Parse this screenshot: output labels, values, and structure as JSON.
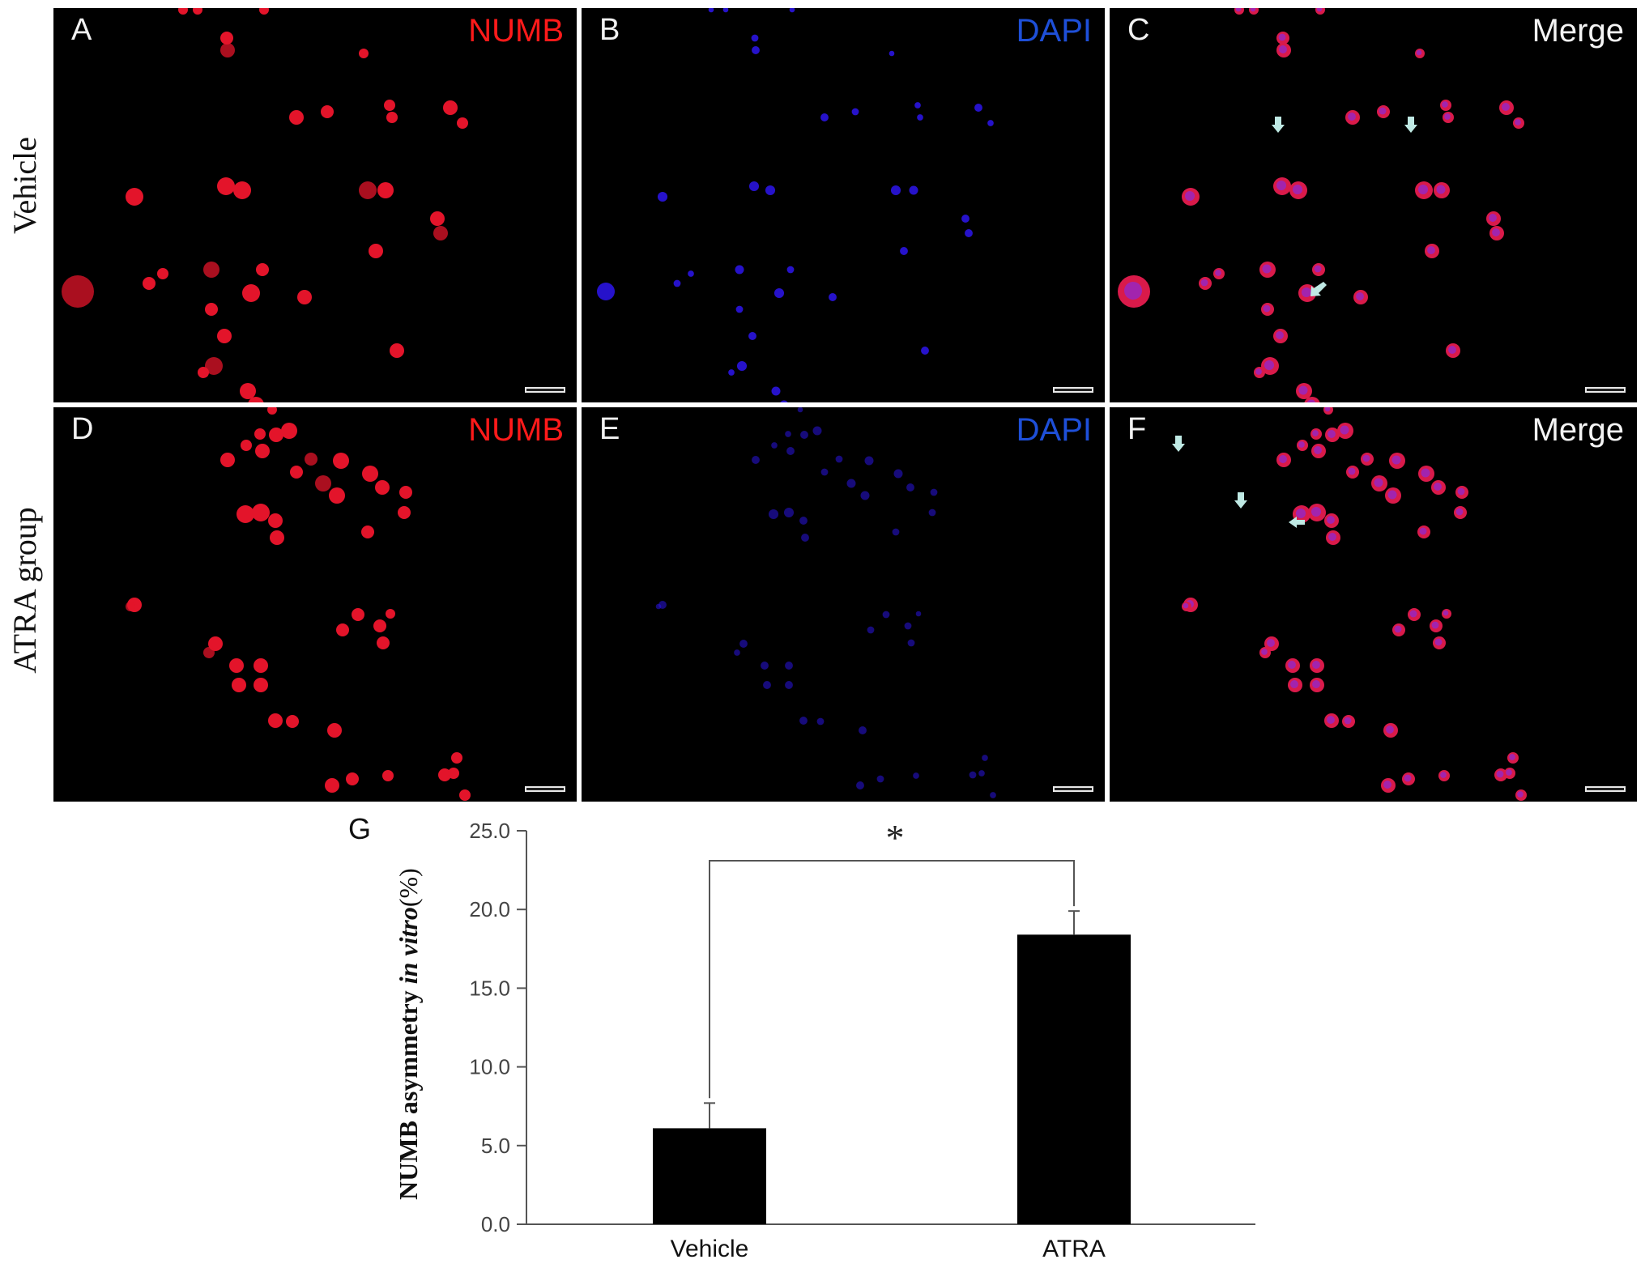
{
  "rows": [
    {
      "label": "Vehicle",
      "panels": [
        {
          "letter": "A",
          "title": "NUMB",
          "stain": "numb"
        },
        {
          "letter": "B",
          "title": "DAPI",
          "stain": "dapi"
        },
        {
          "letter": "C",
          "title": "Merge",
          "stain": "merge"
        }
      ]
    },
    {
      "label": "ATRA group",
      "panels": [
        {
          "letter": "D",
          "title": "NUMB",
          "stain": "numb"
        },
        {
          "letter": "E",
          "title": "DAPI",
          "stain": "dapi"
        },
        {
          "letter": "F",
          "title": "Merge",
          "stain": "merge"
        }
      ]
    }
  ],
  "colors": {
    "numb": "#e3142a",
    "dapi": "#2a14e0",
    "merge_title": "#f4f4f4",
    "numb_title": "#ff1a1a",
    "dapi_title": "#1e4fd8",
    "arrow": "#bfe9e4"
  },
  "chart_panel_letter": "G",
  "chart_data": {
    "type": "bar",
    "categories": [
      "Vehicle",
      "ATRA"
    ],
    "values": [
      6.1,
      18.4
    ],
    "error": [
      1.6,
      1.5
    ],
    "ylabel_prefix": "NUMB asymmetry ",
    "ylabel_italic": "in vitro",
    "ylabel_suffix": "(%)",
    "ylim": [
      0,
      25
    ],
    "yticks": [
      "0.0",
      "5.0",
      "10.0",
      "15.0",
      "20.0",
      "25.0"
    ],
    "significance": "*",
    "bar_color": "#000000",
    "grid": false
  }
}
